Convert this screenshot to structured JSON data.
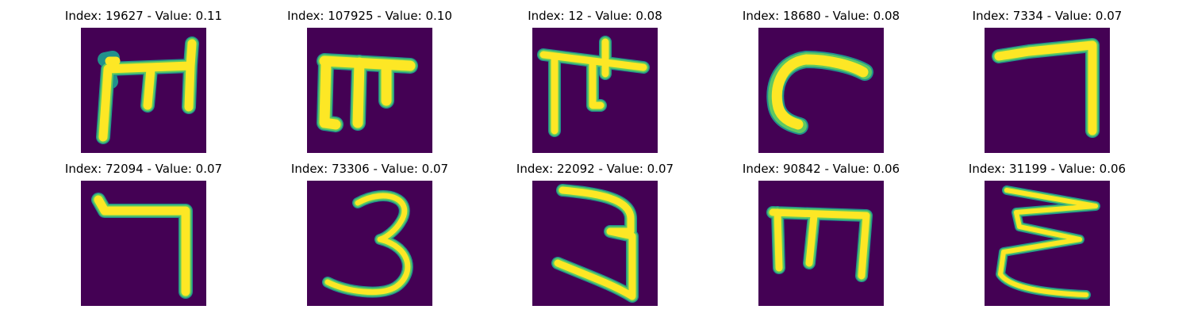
{
  "panels": [
    {
      "title": "Index: 19627 - Value: 0.11"
    },
    {
      "title": "Index: 107925 - Value: 0.10"
    },
    {
      "title": "Index: 12 - Value: 0.08"
    },
    {
      "title": "Index: 18680 - Value: 0.08"
    },
    {
      "title": "Index: 7334 - Value: 0.07"
    },
    {
      "title": "Index: 72094 - Value: 0.07"
    },
    {
      "title": "Index: 73306 - Value: 0.07"
    },
    {
      "title": "Index: 22092 - Value: 0.07"
    },
    {
      "title": "Index: 90842 - Value: 0.06"
    },
    {
      "title": "Index: 31199 - Value: 0.06"
    }
  ],
  "colors": {
    "background": "#440154",
    "stroke_edge": "#21918c",
    "stroke_mid": "#5ec962",
    "stroke_core": "#fde725"
  }
}
